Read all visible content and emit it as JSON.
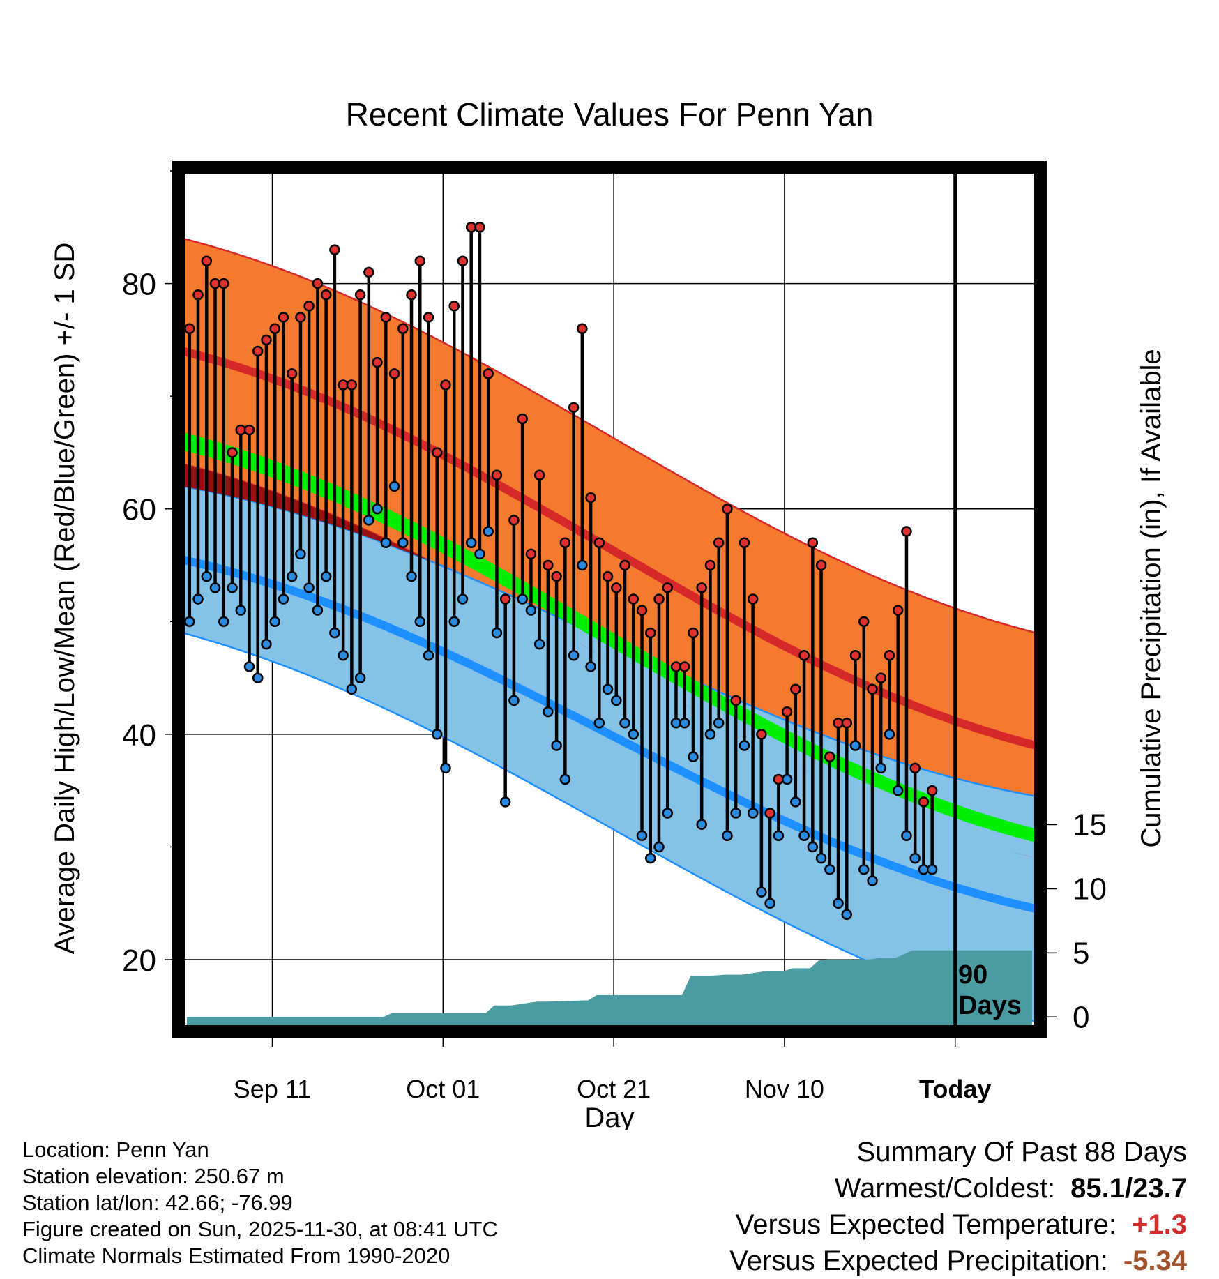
{
  "chart_data": {
    "type": "line",
    "title": "Recent Climate Values For Penn Yan",
    "xlabel": "Day",
    "ylabel": "Average Daily High/Low/Mean (Red/Blue/Green) +/- 1 SD",
    "y2label": "Cumulative Precipitation (in), If Available",
    "xticks": [
      "Sep 11",
      "Oct 01",
      "Oct 21",
      "Nov 10",
      "Today"
    ],
    "xtick_days": [
      10,
      30,
      50,
      70,
      90
    ],
    "xlim": [
      -0.5,
      99.5
    ],
    "ylim": [
      14,
      90
    ],
    "yticks": [
      20,
      40,
      60,
      80
    ],
    "y2lim": [
      -0.8,
      66
    ],
    "y2ticks": [
      0,
      5,
      10,
      15
    ],
    "today_day": 90,
    "today_label_line1": "90",
    "today_label_line2": "Days",
    "normals": {
      "high_mean": {
        "start": 74,
        "end": 39
      },
      "high_sd": {
        "start": 10,
        "end": 10
      },
      "low_mean": {
        "start": 55.5,
        "end": 24.5
      },
      "low_sd": {
        "start": 6.5,
        "end": 10
      },
      "mean": {
        "start": 66,
        "end": 31
      },
      "mean_sd": {
        "start": 0.8,
        "end": 0.6
      }
    },
    "observed_high": [
      76,
      79,
      82,
      80,
      80,
      65,
      67,
      67,
      74,
      75,
      76,
      77,
      72,
      77,
      78,
      80,
      79,
      83,
      71,
      71,
      79,
      81,
      73,
      77,
      72,
      76,
      79,
      82,
      77,
      65,
      71,
      78,
      82,
      85,
      85,
      72,
      63,
      52,
      59,
      68,
      56,
      63,
      55,
      54,
      57,
      69,
      76,
      61,
      57,
      54,
      53,
      55,
      52,
      51,
      49,
      52,
      53,
      46,
      46,
      49,
      53,
      55,
      57,
      60,
      43,
      57,
      52,
      40,
      33,
      36,
      42,
      44,
      47,
      57,
      55,
      38,
      41,
      41,
      47,
      50,
      44,
      45,
      47,
      51,
      58,
      37,
      34,
      35
    ],
    "observed_low": [
      50,
      52,
      54,
      53,
      50,
      53,
      51,
      46,
      45,
      48,
      50,
      52,
      54,
      56,
      53,
      51,
      54,
      49,
      47,
      44,
      45,
      59,
      60,
      57,
      62,
      57,
      54,
      50,
      47,
      40,
      37,
      50,
      52,
      57,
      56,
      58,
      49,
      34,
      43,
      52,
      51,
      48,
      42,
      39,
      36,
      47,
      55,
      46,
      41,
      44,
      43,
      41,
      40,
      31,
      29,
      30,
      33,
      41,
      41,
      38,
      32,
      40,
      41,
      31,
      33,
      39,
      33,
      26,
      25,
      31,
      36,
      34,
      31,
      30,
      29,
      28,
      25,
      24,
      39,
      28,
      27,
      37,
      40,
      35,
      31,
      29,
      28,
      28
    ],
    "cumulative_precip": {
      "days": [
        0,
        23,
        24,
        35,
        36,
        38,
        41,
        42,
        47,
        48,
        50,
        51,
        58,
        59,
        61,
        63,
        65,
        67,
        68,
        70,
        71,
        73,
        74,
        75,
        76,
        80,
        81,
        83,
        84,
        85,
        90,
        99
      ],
      "values": [
        0,
        0,
        0.3,
        0.3,
        0.9,
        0.9,
        1.2,
        1.2,
        1.3,
        1.7,
        1.7,
        1.7,
        1.7,
        3.2,
        3.2,
        3.3,
        3.3,
        3.5,
        3.6,
        3.6,
        3.8,
        3.8,
        4.4,
        4.5,
        4.5,
        4.5,
        4.6,
        4.6,
        4.9,
        5.2,
        5.2,
        5.2
      ]
    },
    "colors": {
      "high_band": "#f47a30",
      "high_line": "#d62828",
      "low_band": "#84c2e8",
      "low_line": "#1e8fff",
      "mean_band": "#00ee00",
      "precip": "#4a9ba2",
      "band_overlap": "#9a1010",
      "high_dot": "#e03030",
      "low_dot": "#2b8be0"
    }
  },
  "info": {
    "location": "Location: Penn Yan",
    "elevation": "Station elevation: 250.67 m",
    "latlon": "Station lat/lon: 42.66; -76.99",
    "created": "Figure created on Sun, 2025-11-30, at 08:41 UTC",
    "normals": "Climate Normals Estimated From 1990-2020"
  },
  "summary": {
    "title": "Summary Of Past 88 Days",
    "warmest_label": "Warmest/Coldest:",
    "warmest_value": "85.1/23.7",
    "temp_label": "Versus Expected Temperature:",
    "temp_value": "+1.3",
    "precip_label": "Versus Expected Precipitation:",
    "precip_value": "-5.34"
  }
}
